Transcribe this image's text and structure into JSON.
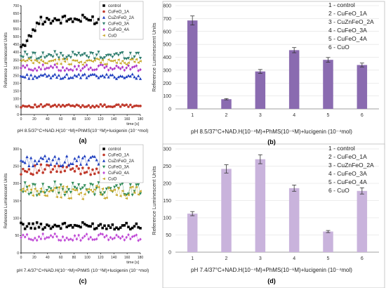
{
  "panels": [
    {
      "id": "a",
      "panel_label": "(a)",
      "caption": "pH 8.5/37°C+NAD.H(10⁻⁴M)+PhMS(10⁻⁶M)+lucigenin (10⁻⁴mol)",
      "colors": {
        "control": "#000000",
        "CuFeO_1A": "#c0392b",
        "CuZnFeO_2A": "#1f3fbf",
        "CuFeO_3A": "#2e7d6e",
        "CuFeO_4A": "#b03ac9",
        "CuO": "#c8a82a"
      }
    },
    {
      "id": "b",
      "panel_label": "(b)",
      "caption": "pH 8.5/37°C+NAD.H(10⁻⁴M)+PhMS(10⁻⁶M)+lucigenin (10⁻⁴mol)",
      "colors": {
        "bar": "#8a6bb0",
        "grid": "#d9d9d9"
      }
    },
    {
      "id": "c",
      "panel_label": "(c)",
      "caption": "pH 7.4/37°C+NAD.H(10⁻⁴M)+PhMS (10⁻⁶M)+lucigenin (10⁻⁴mol)",
      "colors": {
        "control": "#000000",
        "CuFeO_1A": "#c0392b",
        "CuZnFeO_2A": "#1f3fbf",
        "CuFeO_3A": "#2e8b57",
        "CuFeO_4A": "#c04ad6",
        "CuO": "#c8a82a"
      }
    },
    {
      "id": "d",
      "panel_label": "(d)",
      "caption": "pH 7.4/37°C+NAD.H(10⁻⁴M)+PhMS(10⁻⁶M)+lucigenin (10⁻⁴mol)",
      "colors": {
        "bar": "#c9b3dc",
        "grid": "#d9d9d9"
      }
    }
  ],
  "chart_data": [
    {
      "type": "scatter",
      "panel": "a",
      "xlabel": "time [s]",
      "ylabel": "Reference Luminescent Units",
      "xlim": [
        0,
        180
      ],
      "ylim": [
        0,
        700
      ],
      "xticks": [
        0,
        20,
        40,
        60,
        80,
        100,
        120,
        140,
        160,
        180
      ],
      "yticks": [
        0,
        50,
        100,
        150,
        200,
        250,
        300,
        350,
        400,
        450,
        500,
        550,
        600,
        650,
        700
      ],
      "legend": "top-right",
      "legend_entries": [
        "control",
        "CuFeO_1A",
        "CuZnFeO_2A",
        "CuFeO_3A",
        "CuFeO_4A",
        "CuO"
      ],
      "series": [
        {
          "name": "control",
          "marker": "square",
          "approx_level": 610,
          "start": 420,
          "noise": 30
        },
        {
          "name": "CuFeO_1A",
          "marker": "circle",
          "approx_level": 55,
          "noise": 10
        },
        {
          "name": "CuZnFeO_2A",
          "marker": "triangle-up",
          "approx_level": 245,
          "noise": 15
        },
        {
          "name": "CuFeO_3A",
          "marker": "triangle-down",
          "approx_level": 380,
          "noise": 25
        },
        {
          "name": "CuFeO_4A",
          "marker": "diamond",
          "approx_level": 300,
          "noise": 20
        },
        {
          "name": "CuO",
          "marker": "triangle-left",
          "approx_level": 340,
          "noise": 20
        }
      ]
    },
    {
      "type": "bar",
      "panel": "b",
      "categories": [
        "1",
        "2",
        "3",
        "4",
        "5",
        "6"
      ],
      "values": [
        685,
        75,
        290,
        455,
        380,
        340
      ],
      "errors": [
        35,
        5,
        15,
        20,
        18,
        15
      ],
      "xlabel": "",
      "ylabel": "Reference Luminescent Units",
      "ylim": [
        0,
        800
      ],
      "yticks": [
        0,
        100,
        200,
        300,
        400,
        500,
        600,
        700,
        800
      ],
      "grid": true,
      "legend": "top-right",
      "legend_entries": [
        "1 - control",
        "2 - CuFeO_1A",
        "3 - CuZnFeO_2A",
        "4 - CuFeO_3A",
        "5 - CuFeO_4A",
        "6 - CuO"
      ]
    },
    {
      "type": "scatter",
      "panel": "c",
      "xlabel": "time [s]",
      "ylabel": "Reference Luminescent Units",
      "xlim": [
        0,
        180
      ],
      "ylim": [
        0,
        300
      ],
      "xticks": [
        0,
        20,
        40,
        60,
        80,
        100,
        120,
        140,
        160,
        180
      ],
      "yticks": [
        0,
        50,
        100,
        150,
        200,
        250,
        300
      ],
      "legend": "top-right",
      "legend_entries": [
        "control",
        "CuFeO_1A",
        "CuZnFeO_2A",
        "CuFeO_3A",
        "CuFeO_4A",
        "CuO"
      ],
      "series": [
        {
          "name": "control",
          "marker": "square",
          "approx_level": 78,
          "noise": 10
        },
        {
          "name": "CuFeO_1A",
          "marker": "circle",
          "approx_level": 240,
          "noise": 15
        },
        {
          "name": "CuZnFeO_2A",
          "marker": "triangle-up",
          "approx_level": 265,
          "noise": 15
        },
        {
          "name": "CuFeO_3A",
          "marker": "triangle-down",
          "approx_level": 185,
          "noise": 20
        },
        {
          "name": "CuFeO_4A",
          "marker": "diamond",
          "approx_level": 45,
          "noise": 10
        },
        {
          "name": "CuO",
          "marker": "triangle-left",
          "approx_level": 175,
          "noise": 20
        }
      ]
    },
    {
      "type": "bar",
      "panel": "d",
      "categories": [
        "1",
        "2",
        "3",
        "4",
        "5",
        "6"
      ],
      "values": [
        112,
        242,
        270,
        186,
        60,
        178
      ],
      "errors": [
        6,
        12,
        13,
        9,
        3,
        9
      ],
      "xlabel": "",
      "ylabel": "Reference Luminescent Units",
      "ylim": [
        0,
        300
      ],
      "yticks": [
        0,
        50,
        100,
        150,
        200,
        250,
        300
      ],
      "grid": true,
      "legend": "top-right",
      "legend_entries": [
        "1 - control",
        "2 - CuFeO_1A",
        "3 - CuZnFeO_2A",
        "4 - CuFeO_3A",
        "5 - CuFeO_4A",
        "6 - CuO"
      ]
    }
  ]
}
